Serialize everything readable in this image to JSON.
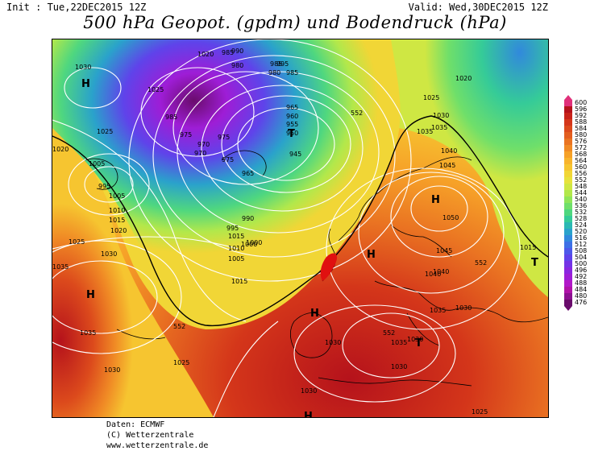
{
  "header": {
    "init": "Init : Tue,22DEC2015 12Z",
    "valid": "Valid: Wed,30DEC2015 12Z",
    "title": "500 hPa Geopot. (gpdm) und Bodendruck (hPa)"
  },
  "credits": {
    "line1": "Daten: ECMWF",
    "line2": "(C) Wetterzentrale",
    "line3": "www.wetterzentrale.de"
  },
  "legend": {
    "values": [
      "600",
      "596",
      "592",
      "588",
      "584",
      "580",
      "576",
      "572",
      "568",
      "564",
      "560",
      "556",
      "552",
      "548",
      "544",
      "540",
      "536",
      "532",
      "528",
      "524",
      "520",
      "516",
      "512",
      "508",
      "504",
      "500",
      "496",
      "492",
      "488",
      "484",
      "480",
      "476"
    ],
    "colors": [
      "#e0307a",
      "#b5121b",
      "#c8231a",
      "#d4361a",
      "#dc4a1c",
      "#e35e1f",
      "#ea7422",
      "#f08a25",
      "#f6a128",
      "#f8b42c",
      "#f6c530",
      "#f1d636",
      "#e7e23c",
      "#cfe743",
      "#b2e84b",
      "#8fe559",
      "#6fdf6a",
      "#4fd77f",
      "#35cb98",
      "#2bb8b3",
      "#2aa2cb",
      "#3189dc",
      "#3d70e6",
      "#4d58ea",
      "#5f43ea",
      "#7433e6",
      "#8a26e0",
      "#9e1dd6",
      "#b118c8",
      "#b012a8",
      "#8c1090",
      "#6a0c6c"
    ]
  },
  "map_labels": {
    "pressure": [
      "1030",
      "1025",
      "1020",
      "1005",
      "995",
      "1005",
      "1010",
      "1015",
      "1020",
      "1025",
      "1035",
      "1030",
      "1035",
      "1030",
      "1025",
      "1020",
      "1015",
      "1010",
      "1005",
      "1000",
      "995",
      "990",
      "985",
      "980",
      "975",
      "970",
      "965",
      "960",
      "955",
      "950",
      "945",
      "985",
      "975",
      "970",
      "975",
      "965",
      "985",
      "980",
      "990",
      "1000",
      "995",
      "985",
      "1015",
      "1025",
      "1030",
      "1035",
      "1040",
      "1045",
      "1050",
      "1045",
      "1040",
      "1035",
      "1030",
      "1035",
      "1030",
      "1040",
      "1015",
      "1030",
      "1025",
      "1030",
      "1035",
      "1020",
      "1025",
      "1030"
    ],
    "heights": [
      "552",
      "552",
      "552",
      "552"
    ],
    "centers_H": [
      "H",
      "H",
      "H",
      "H",
      "H",
      "H"
    ],
    "centers_T": [
      "T",
      "T",
      "T"
    ]
  }
}
